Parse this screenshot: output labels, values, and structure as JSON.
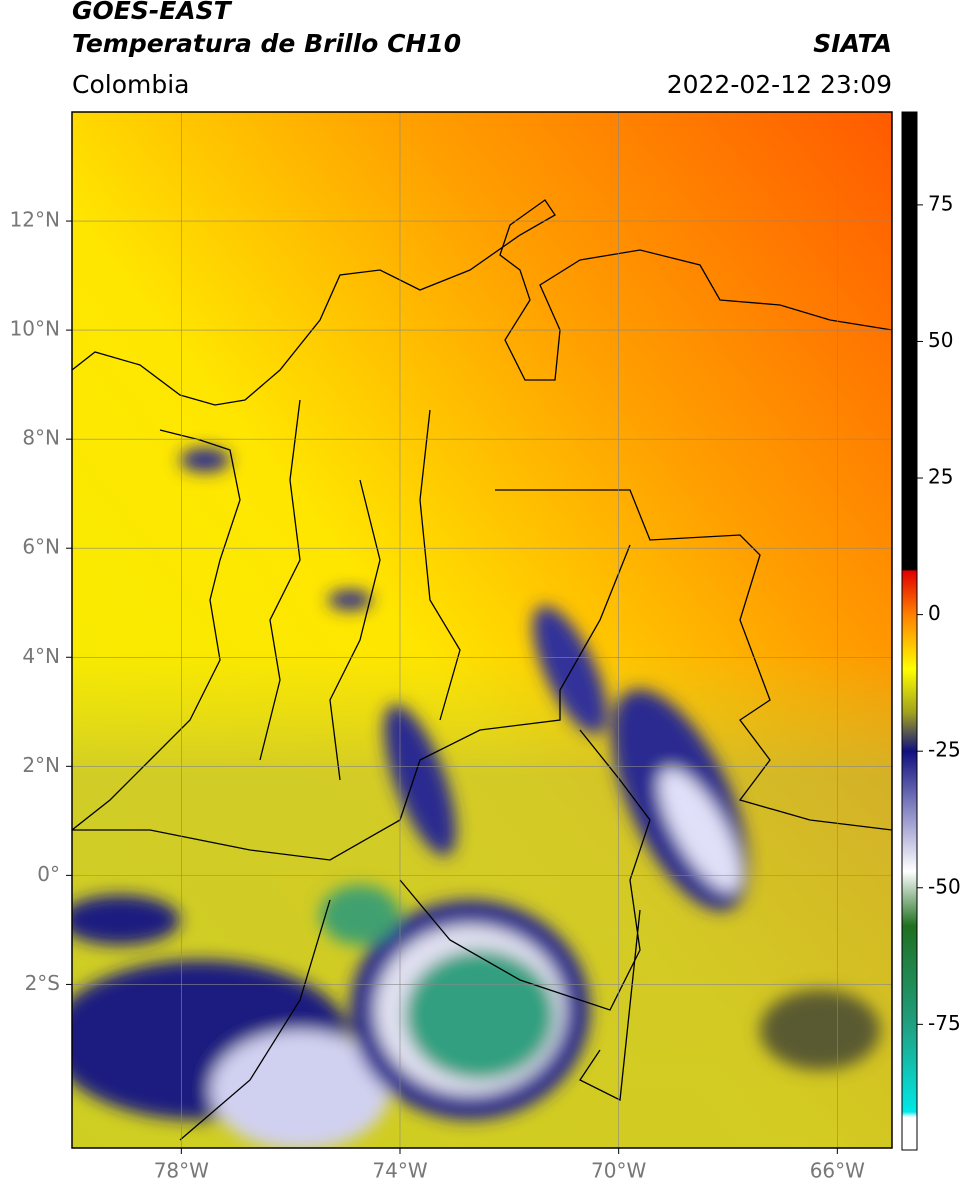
{
  "header": {
    "satellite": "GOES-EAST",
    "product": "Temperatura de Brillo CH10",
    "source": "SIATA",
    "region": "Colombia",
    "datetime": "2022-02-12 23:09"
  },
  "map": {
    "lonlim": [
      -80,
      -65
    ],
    "latlim": [
      -5,
      14
    ],
    "lonticks": [
      {
        "value": -78,
        "label": "78°W"
      },
      {
        "value": -74,
        "label": "74°W"
      },
      {
        "value": -70,
        "label": "70°W"
      },
      {
        "value": -66,
        "label": "66°W"
      }
    ],
    "latticks": [
      {
        "value": 12,
        "label": "12°N"
      },
      {
        "value": 10,
        "label": "10°N"
      },
      {
        "value": 8,
        "label": "8°N"
      },
      {
        "value": 6,
        "label": "6°N"
      },
      {
        "value": 4,
        "label": "4°N"
      },
      {
        "value": 2,
        "label": "2°N"
      },
      {
        "value": 0,
        "label": "0°"
      },
      {
        "value": -2,
        "label": "2°S"
      }
    ],
    "grid": true
  },
  "colorbar": {
    "lim": [
      -98,
      92
    ],
    "ticks": [
      75,
      50,
      25,
      0,
      -25,
      -50,
      -75
    ],
    "colormap": [
      {
        "value": 92,
        "color": "#000000"
      },
      {
        "value": 8.2,
        "color": "#000000"
      },
      {
        "value": 8,
        "color": "#e00000"
      },
      {
        "value": 0,
        "color": "#ff8000"
      },
      {
        "value": -10,
        "color": "#ffff00"
      },
      {
        "value": -18,
        "color": "#a0a020"
      },
      {
        "value": -25,
        "color": "#101080"
      },
      {
        "value": -35,
        "color": "#8080c0"
      },
      {
        "value": -47,
        "color": "#ffffff"
      },
      {
        "value": -57,
        "color": "#207020"
      },
      {
        "value": -75,
        "color": "#20a080"
      },
      {
        "value": -91,
        "color": "#00e8e8"
      },
      {
        "value": -92,
        "color": "#ffffff"
      },
      {
        "value": -98,
        "color": "#ffffff"
      }
    ]
  }
}
